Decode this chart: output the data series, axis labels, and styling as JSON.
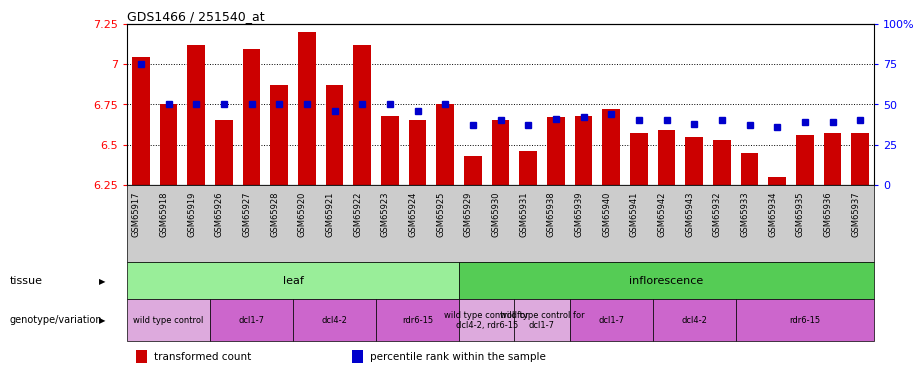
{
  "title": "GDS1466 / 251540_at",
  "samples": [
    "GSM65917",
    "GSM65918",
    "GSM65919",
    "GSM65926",
    "GSM65927",
    "GSM65928",
    "GSM65920",
    "GSM65921",
    "GSM65922",
    "GSM65923",
    "GSM65924",
    "GSM65925",
    "GSM65929",
    "GSM65930",
    "GSM65931",
    "GSM65938",
    "GSM65939",
    "GSM65940",
    "GSM65941",
    "GSM65942",
    "GSM65943",
    "GSM65932",
    "GSM65933",
    "GSM65934",
    "GSM65935",
    "GSM65936",
    "GSM65937"
  ],
  "bar_values": [
    7.04,
    6.75,
    7.12,
    6.65,
    7.09,
    6.87,
    7.2,
    6.87,
    7.12,
    6.68,
    6.65,
    6.75,
    6.43,
    6.65,
    6.46,
    6.67,
    6.68,
    6.72,
    6.57,
    6.59,
    6.55,
    6.53,
    6.45,
    6.3,
    6.56,
    6.57,
    6.57
  ],
  "percentile_values": [
    75,
    50,
    50,
    50,
    50,
    50,
    50,
    46,
    50,
    50,
    46,
    50,
    37,
    40,
    37,
    41,
    42,
    44,
    40,
    40,
    38,
    40,
    37,
    36,
    39,
    39,
    40
  ],
  "ylim": [
    6.25,
    7.25
  ],
  "yticks": [
    6.25,
    6.5,
    6.75,
    7.0,
    7.25
  ],
  "ytick_labels": [
    "6.25",
    "6.5",
    "6.75",
    "7",
    "7.25"
  ],
  "right_yticks": [
    0,
    25,
    50,
    75,
    100
  ],
  "right_ytick_labels": [
    "0",
    "25",
    "50",
    "75",
    "100%"
  ],
  "bar_color": "#cc0000",
  "percentile_color": "#0000cc",
  "tissue_row": [
    {
      "label": "leaf",
      "start": 0,
      "end": 11,
      "color": "#99ee99"
    },
    {
      "label": "inflorescence",
      "start": 12,
      "end": 26,
      "color": "#55cc55"
    }
  ],
  "genotype_row": [
    {
      "label": "wild type control",
      "start": 0,
      "end": 2,
      "color": "#ddaadd"
    },
    {
      "label": "dcl1-7",
      "start": 3,
      "end": 5,
      "color": "#cc66cc"
    },
    {
      "label": "dcl4-2",
      "start": 6,
      "end": 8,
      "color": "#cc66cc"
    },
    {
      "label": "rdr6-15",
      "start": 9,
      "end": 11,
      "color": "#cc66cc"
    },
    {
      "label": "wild type control for\ndcl4-2, rdr6-15",
      "start": 12,
      "end": 13,
      "color": "#ddaadd"
    },
    {
      "label": "wild type control for\ndcl1-7",
      "start": 14,
      "end": 15,
      "color": "#ddaadd"
    },
    {
      "label": "dcl1-7",
      "start": 16,
      "end": 18,
      "color": "#cc66cc"
    },
    {
      "label": "dcl4-2",
      "start": 19,
      "end": 21,
      "color": "#cc66cc"
    },
    {
      "label": "rdr6-15",
      "start": 22,
      "end": 26,
      "color": "#cc66cc"
    }
  ],
  "legend_items": [
    {
      "color": "#cc0000",
      "label": "transformed count"
    },
    {
      "color": "#0000cc",
      "label": "percentile rank within the sample"
    }
  ],
  "xtick_bg_color": "#cccccc",
  "fig_bg": "#ffffff"
}
